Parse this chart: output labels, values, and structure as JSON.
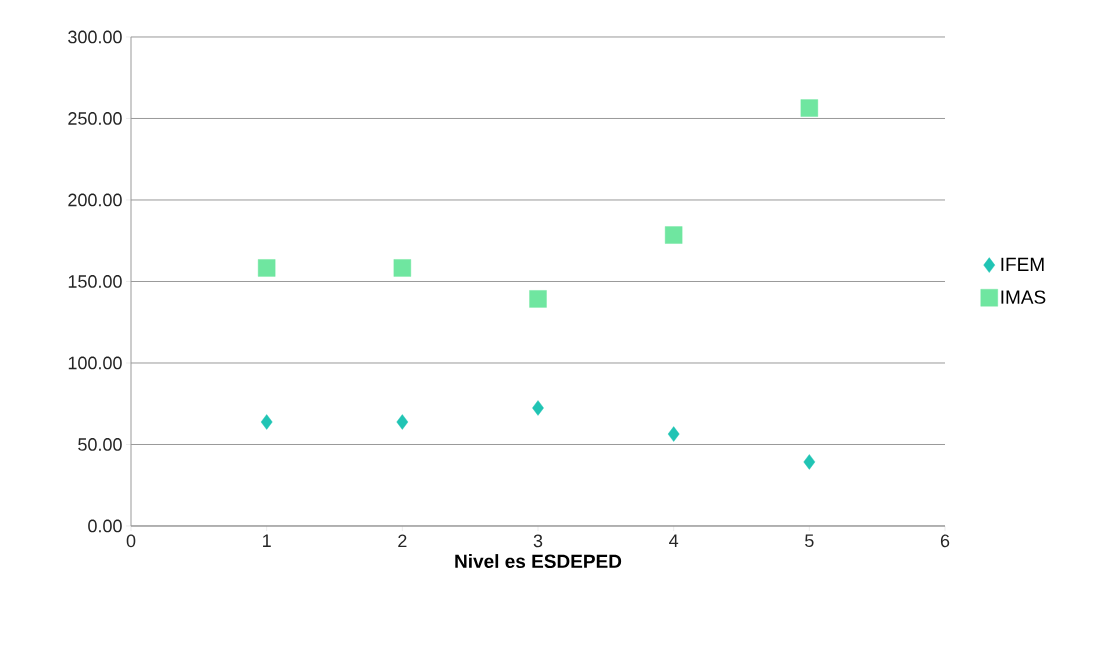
{
  "chart_data": {
    "type": "scatter",
    "xlabel": "Nivel es ESDEPED",
    "x": [
      1,
      2,
      3,
      4,
      5
    ],
    "series": [
      {
        "name": "IFEM",
        "color": "#20c4b4",
        "marker": "diamond",
        "values": [
          63.8,
          63.8,
          72.4,
          56.4,
          39.3
        ]
      },
      {
        "name": "IMAS",
        "color": "#6fe6a0",
        "marker": "square",
        "values": [
          158.3,
          158.3,
          139.3,
          178.5,
          256.4
        ]
      }
    ],
    "xlim": [
      0,
      6
    ],
    "xticks": [
      0,
      1,
      2,
      3,
      4,
      5,
      6
    ],
    "ylim": [
      0,
      300
    ],
    "yticks": [
      {
        "value": 0,
        "label": "0.00"
      },
      {
        "value": 50,
        "label": "50.00"
      },
      {
        "value": 100,
        "label": "100.00"
      },
      {
        "value": 150,
        "label": "150.00"
      },
      {
        "value": 200,
        "label": "200.00"
      },
      {
        "value": 250,
        "label": "250.00"
      },
      {
        "value": 300,
        "label": "300.00"
      }
    ],
    "grid": "y",
    "legend": "right"
  }
}
